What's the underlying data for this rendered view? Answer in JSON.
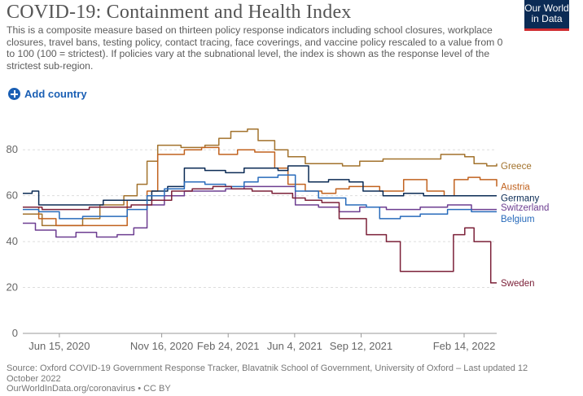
{
  "header": {
    "title": "COVID-19: Containment and Health Index",
    "subtitle": "This is a composite measure based on thirteen policy response indicators including school closures, workplace closures, travel bans, testing policy, contact tracing, face coverings, and vaccine policy rescaled to a value from 0 to 100 (100 = strictest). If policies vary at the subnational level, the index is shown as the response level of the strictest sub-region."
  },
  "logo": {
    "line1": "Our World",
    "line2": "in Data",
    "bg_color": "#0b2b55",
    "accent_color": "#cf2b2f"
  },
  "controls": {
    "add_country_label": "Add country",
    "icon": "plus-circle-icon"
  },
  "footer": {
    "source": "Source: Oxford COVID-19 Government Response Tracker, Blavatnik School of Government, University of Oxford – Last updated 12 October 2022",
    "url": "OurWorldInData.org/coronavirus • CC BY"
  },
  "chart_data": {
    "type": "line",
    "x_start": "2020-04-21",
    "x_end": "2022-04-04",
    "ylim": [
      0,
      90
    ],
    "yticks": [
      0,
      20,
      40,
      60,
      80
    ],
    "xticks": [
      {
        "date": "2020-06-15",
        "label": "Jun 15, 2020"
      },
      {
        "date": "2020-11-16",
        "label": "Nov 16, 2020"
      },
      {
        "date": "2021-02-24",
        "label": "Feb 24, 2021"
      },
      {
        "date": "2021-06-04",
        "label": "Jun 4, 2021"
      },
      {
        "date": "2021-09-12",
        "label": "Sep 12, 2021"
      },
      {
        "date": "2022-02-14",
        "label": "Feb 14, 2022"
      }
    ],
    "grid": true,
    "series": [
      {
        "name": "Greece",
        "color": "#a2722c",
        "label_y": 73,
        "points": [
          [
            "2020-04-21",
            52
          ],
          [
            "2020-05-10",
            52
          ],
          [
            "2020-05-20",
            47
          ],
          [
            "2020-06-25",
            47
          ],
          [
            "2020-07-20",
            50
          ],
          [
            "2020-08-15",
            56
          ],
          [
            "2020-09-20",
            60
          ],
          [
            "2020-10-10",
            65
          ],
          [
            "2020-10-25",
            75
          ],
          [
            "2020-11-10",
            82
          ],
          [
            "2020-12-15",
            81
          ],
          [
            "2021-01-20",
            82
          ],
          [
            "2021-02-10",
            85
          ],
          [
            "2021-02-28",
            88
          ],
          [
            "2021-03-25",
            89
          ],
          [
            "2021-04-10",
            84
          ],
          [
            "2021-05-05",
            80
          ],
          [
            "2021-05-25",
            77
          ],
          [
            "2021-06-20",
            74
          ],
          [
            "2021-07-25",
            74
          ],
          [
            "2021-08-15",
            73
          ],
          [
            "2021-09-10",
            75
          ],
          [
            "2021-10-15",
            76
          ],
          [
            "2021-12-20",
            76
          ],
          [
            "2022-01-10",
            78
          ],
          [
            "2022-02-15",
            77
          ],
          [
            "2022-03-01",
            74
          ],
          [
            "2022-03-20",
            73
          ],
          [
            "2022-04-04",
            74
          ]
        ]
      },
      {
        "name": "Austria",
        "color": "#c1621e",
        "label_y": 64,
        "points": [
          [
            "2020-04-21",
            55
          ],
          [
            "2020-05-15",
            50
          ],
          [
            "2020-06-10",
            47
          ],
          [
            "2020-07-20",
            47
          ],
          [
            "2020-08-20",
            47
          ],
          [
            "2020-09-25",
            58
          ],
          [
            "2020-10-25",
            62
          ],
          [
            "2020-11-10",
            78
          ],
          [
            "2020-12-20",
            80
          ],
          [
            "2021-01-15",
            81
          ],
          [
            "2021-02-10",
            78
          ],
          [
            "2021-03-10",
            80
          ],
          [
            "2021-04-05",
            79
          ],
          [
            "2021-05-05",
            72
          ],
          [
            "2021-05-25",
            65
          ],
          [
            "2021-06-20",
            62
          ],
          [
            "2021-07-15",
            61
          ],
          [
            "2021-08-05",
            63
          ],
          [
            "2021-08-25",
            64
          ],
          [
            "2021-09-20",
            64
          ],
          [
            "2021-10-10",
            62
          ],
          [
            "2021-11-15",
            67
          ],
          [
            "2021-12-20",
            62
          ],
          [
            "2022-01-15",
            60
          ],
          [
            "2022-01-30",
            67
          ],
          [
            "2022-02-20",
            68
          ],
          [
            "2022-03-10",
            67
          ],
          [
            "2022-04-04",
            64
          ]
        ]
      },
      {
        "name": "Germany",
        "color": "#0b2b55",
        "label_y": 59,
        "points": [
          [
            "2020-04-21",
            61
          ],
          [
            "2020-05-05",
            62
          ],
          [
            "2020-05-15",
            56
          ],
          [
            "2020-06-10",
            56
          ],
          [
            "2020-07-15",
            56
          ],
          [
            "2020-08-20",
            58
          ],
          [
            "2020-10-01",
            58
          ],
          [
            "2020-11-01",
            62
          ],
          [
            "2020-11-25",
            64
          ],
          [
            "2020-12-20",
            72
          ],
          [
            "2021-01-20",
            71
          ],
          [
            "2021-02-20",
            70
          ],
          [
            "2021-03-20",
            72
          ],
          [
            "2021-04-20",
            72
          ],
          [
            "2021-05-10",
            71
          ],
          [
            "2021-05-25",
            73
          ],
          [
            "2021-06-10",
            73
          ],
          [
            "2021-06-25",
            66
          ],
          [
            "2021-07-25",
            67
          ],
          [
            "2021-08-25",
            66
          ],
          [
            "2021-09-15",
            62
          ],
          [
            "2021-10-15",
            60
          ],
          [
            "2021-11-15",
            61
          ],
          [
            "2021-12-15",
            60
          ],
          [
            "2022-01-20",
            60
          ],
          [
            "2022-02-20",
            60
          ],
          [
            "2022-04-04",
            60
          ]
        ]
      },
      {
        "name": "Switzerland",
        "color": "#6d3e91",
        "label_y": 55,
        "points": [
          [
            "2020-04-21",
            48
          ],
          [
            "2020-05-10",
            45
          ],
          [
            "2020-06-10",
            42
          ],
          [
            "2020-07-10",
            44
          ],
          [
            "2020-08-10",
            42
          ],
          [
            "2020-09-10",
            43
          ],
          [
            "2020-10-05",
            46
          ],
          [
            "2020-10-25",
            56
          ],
          [
            "2020-11-20",
            60
          ],
          [
            "2020-12-20",
            62
          ],
          [
            "2021-01-20",
            62
          ],
          [
            "2021-02-20",
            63
          ],
          [
            "2021-03-20",
            64
          ],
          [
            "2021-04-20",
            64
          ],
          [
            "2021-05-10",
            64
          ],
          [
            "2021-06-05",
            56
          ],
          [
            "2021-07-10",
            55
          ],
          [
            "2021-08-10",
            53
          ],
          [
            "2021-09-10",
            55
          ],
          [
            "2021-10-20",
            54
          ],
          [
            "2021-12-10",
            55
          ],
          [
            "2022-01-20",
            56
          ],
          [
            "2022-02-25",
            54
          ],
          [
            "2022-04-04",
            54
          ]
        ]
      },
      {
        "name": "Belgium",
        "color": "#286bbb",
        "label_y": 50,
        "points": [
          [
            "2020-04-21",
            54
          ],
          [
            "2020-05-15",
            53
          ],
          [
            "2020-06-15",
            50
          ],
          [
            "2020-07-20",
            51
          ],
          [
            "2020-08-20",
            51
          ],
          [
            "2020-09-25",
            54
          ],
          [
            "2020-10-25",
            60
          ],
          [
            "2020-11-20",
            63
          ],
          [
            "2020-12-20",
            66
          ],
          [
            "2021-01-20",
            65
          ],
          [
            "2021-02-20",
            64
          ],
          [
            "2021-03-20",
            66
          ],
          [
            "2021-04-10",
            68
          ],
          [
            "2021-05-10",
            69
          ],
          [
            "2021-06-05",
            62
          ],
          [
            "2021-07-10",
            59
          ],
          [
            "2021-08-20",
            56
          ],
          [
            "2021-09-20",
            55
          ],
          [
            "2021-10-10",
            50
          ],
          [
            "2021-11-10",
            51
          ],
          [
            "2021-12-10",
            52
          ],
          [
            "2022-01-20",
            54
          ],
          [
            "2022-02-25",
            53
          ],
          [
            "2022-04-04",
            53
          ]
        ]
      },
      {
        "name": "Sweden",
        "color": "#7b2038",
        "label_y": 22,
        "points": [
          [
            "2020-04-21",
            55
          ],
          [
            "2020-05-20",
            54
          ],
          [
            "2020-06-30",
            54
          ],
          [
            "2020-07-30",
            55
          ],
          [
            "2020-08-30",
            55
          ],
          [
            "2020-10-01",
            56
          ],
          [
            "2020-11-01",
            58
          ],
          [
            "2020-12-01",
            62
          ],
          [
            "2021-01-01",
            63
          ],
          [
            "2021-02-01",
            64
          ],
          [
            "2021-03-01",
            63
          ],
          [
            "2021-04-01",
            62
          ],
          [
            "2021-05-01",
            61
          ],
          [
            "2021-06-01",
            59
          ],
          [
            "2021-06-20",
            58
          ],
          [
            "2021-07-15",
            57
          ],
          [
            "2021-08-10",
            50
          ],
          [
            "2021-09-20",
            43
          ],
          [
            "2021-10-20",
            40
          ],
          [
            "2021-11-10",
            27
          ],
          [
            "2021-12-10",
            27
          ],
          [
            "2022-01-10",
            27
          ],
          [
            "2022-01-28",
            27
          ],
          [
            "2022-01-29",
            43
          ],
          [
            "2022-02-15",
            46
          ],
          [
            "2022-03-01",
            40
          ],
          [
            "2022-03-25",
            40
          ],
          [
            "2022-03-26",
            22
          ],
          [
            "2022-04-04",
            22
          ]
        ]
      }
    ]
  }
}
